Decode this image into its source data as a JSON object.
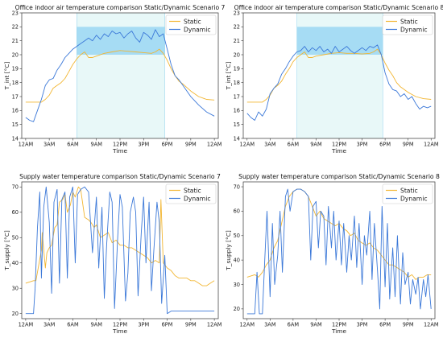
{
  "chart_data": [
    {
      "type": "line",
      "title": "Office indoor air temperature comparison Static/Dynamic Scenario 7",
      "xlabel": "Time",
      "ylabel": "T_int [°C]",
      "xticks": [
        "12AM",
        "3AM",
        "6AM",
        "9AM",
        "12PM",
        "3PM",
        "6PM",
        "9PM",
        "12AM"
      ],
      "xlim": [
        -0.5,
        24.5
      ],
      "ylim": [
        14,
        23
      ],
      "yticks": [
        14,
        15,
        16,
        17,
        18,
        19,
        20,
        21,
        22,
        23
      ],
      "legend": "top-right",
      "shading": {
        "x0": 6.5,
        "x1": 17.7,
        "band_low": 20,
        "band_high": 22,
        "band_color": "#a6dcf4",
        "area_color": "#e8f8f8"
      },
      "series": [
        {
          "name": "Static",
          "color": "#f2b632",
          "x": [
            0,
            1,
            2,
            2.5,
            3,
            3.5,
            4,
            4.5,
            5,
            5.5,
            6,
            6.5,
            7,
            7.5,
            8,
            8.5,
            9,
            10,
            11,
            12,
            13,
            14,
            15,
            16,
            16.5,
            17,
            17.5,
            18,
            18.5,
            19,
            19.5,
            20,
            21,
            22,
            23,
            24
          ],
          "y": [
            16.6,
            16.6,
            16.6,
            16.8,
            17.1,
            17.6,
            17.8,
            18,
            18.3,
            18.8,
            19.3,
            19.7,
            20,
            20.2,
            19.8,
            19.8,
            19.9,
            20.1,
            20.2,
            20.3,
            20.25,
            20.2,
            20.15,
            20.1,
            20.2,
            20.4,
            20.1,
            19.6,
            19.0,
            18.5,
            18.1,
            17.9,
            17.4,
            17.0,
            16.8,
            16.75
          ]
        },
        {
          "name": "Dynamic",
          "color": "#3b78d8",
          "x": [
            0,
            0.5,
            1,
            1.5,
            2,
            2.5,
            3,
            3.5,
            4,
            4.5,
            5,
            5.5,
            6,
            6.5,
            7,
            7.5,
            8,
            8.5,
            9,
            9.5,
            10,
            10.5,
            11,
            11.5,
            12,
            12.5,
            13,
            13.5,
            14,
            14.5,
            15,
            15.5,
            16,
            16.5,
            17,
            17.5,
            18,
            18.5,
            19,
            19.5,
            20,
            21,
            22,
            23,
            24
          ],
          "y": [
            15.5,
            15.3,
            15.2,
            16.0,
            16.8,
            17.8,
            18.2,
            18.3,
            18.9,
            19.3,
            19.8,
            20.1,
            20.4,
            20.6,
            20.8,
            21.0,
            21.2,
            21.0,
            21.4,
            21.1,
            21.5,
            21.3,
            21.7,
            21.5,
            21.6,
            21.2,
            21.5,
            21.7,
            21.2,
            20.9,
            21.6,
            21.4,
            21.1,
            21.8,
            21.3,
            21.5,
            20.4,
            19.3,
            18.5,
            18.2,
            17.8,
            17.0,
            16.4,
            15.9,
            15.6
          ]
        }
      ]
    },
    {
      "type": "line",
      "title": "Office indoor air temperature comparison Static/Dynamic Scenario 8",
      "xlabel": "Time",
      "ylabel": "T_int [°C]",
      "xticks": [
        "12AM",
        "3AM",
        "6AM",
        "9AM",
        "12PM",
        "3PM",
        "6PM",
        "9PM",
        "12AM"
      ],
      "xlim": [
        -0.5,
        24.5
      ],
      "ylim": [
        14,
        23
      ],
      "yticks": [
        14,
        15,
        16,
        17,
        18,
        19,
        20,
        21,
        22,
        23
      ],
      "legend": "top-right",
      "shading": {
        "x0": 6.5,
        "x1": 17.7,
        "band_low": 20,
        "band_high": 22,
        "band_color": "#a6dcf4",
        "area_color": "#e8f8f8"
      },
      "series": [
        {
          "name": "Static",
          "color": "#f2b632",
          "x": [
            0,
            1,
            2,
            2.5,
            3,
            3.5,
            4,
            4.5,
            5,
            5.5,
            6,
            6.5,
            7,
            7.5,
            8,
            8.5,
            9,
            10,
            11,
            12,
            13,
            14,
            15,
            16,
            16.5,
            17,
            17.5,
            18,
            18.5,
            19,
            19.5,
            20,
            21,
            22,
            23,
            24
          ],
          "y": [
            16.6,
            16.6,
            16.6,
            16.8,
            17.1,
            17.6,
            17.8,
            18.1,
            18.6,
            19.0,
            19.5,
            19.8,
            20.0,
            20.2,
            19.8,
            19.8,
            19.9,
            20.0,
            20.1,
            20.15,
            20.1,
            20.1,
            20.05,
            20.1,
            20.2,
            20.4,
            20.0,
            19.4,
            18.9,
            18.5,
            18.0,
            17.7,
            17.3,
            17.0,
            16.85,
            16.8
          ]
        },
        {
          "name": "Dynamic",
          "color": "#3b78d8",
          "x": [
            0,
            0.5,
            1,
            1.5,
            2,
            2.5,
            3,
            3.5,
            4,
            4.5,
            5,
            5.5,
            6,
            6.5,
            7,
            7.5,
            8,
            8.5,
            9,
            9.5,
            10,
            10.5,
            11,
            11.5,
            12,
            12.5,
            13,
            13.5,
            14,
            14.5,
            15,
            15.5,
            16,
            16.5,
            17,
            17.5,
            18,
            18.5,
            19,
            19.5,
            20,
            20.5,
            21,
            21.5,
            22,
            22.5,
            23,
            23.5,
            24
          ],
          "y": [
            15.8,
            15.5,
            15.3,
            15.9,
            15.6,
            16.1,
            17.2,
            17.6,
            17.9,
            18.6,
            19.0,
            19.5,
            19.9,
            20.2,
            20.3,
            20.6,
            20.2,
            20.5,
            20.3,
            20.6,
            20.2,
            20.4,
            20.1,
            20.6,
            20.2,
            20.4,
            20.6,
            20.3,
            20.1,
            20.3,
            20.5,
            20.3,
            20.6,
            20.5,
            20.7,
            20.0,
            18.7,
            17.9,
            17.5,
            17.4,
            17.0,
            17.2,
            16.8,
            17.0,
            16.5,
            16.1,
            16.3,
            16.2,
            16.3
          ]
        }
      ]
    },
    {
      "type": "line",
      "title": "Supply water temperature comparison Static/Dynamic Scenario 7",
      "xlabel": "Time",
      "ylabel": "T_supply [°C]",
      "xticks": [
        "12AM",
        "3AM",
        "6AM",
        "9AM",
        "12PM",
        "3PM",
        "6PM",
        "9PM",
        "12AM"
      ],
      "xlim": [
        -0.5,
        24.5
      ],
      "ylim": [
        18,
        72
      ],
      "yticks": [
        20,
        30,
        40,
        50,
        60,
        70
      ],
      "legend": "top-right",
      "series": [
        {
          "name": "Static",
          "color": "#f2b632",
          "x": [
            0,
            1,
            1.3,
            2,
            2.1,
            2.5,
            2.7,
            3,
            3.3,
            3.7,
            4,
            4.3,
            4.7,
            5,
            5.3,
            5.7,
            6,
            6.3,
            6.7,
            7,
            7.5,
            8,
            8.3,
            8.7,
            9,
            9.5,
            10,
            10.5,
            11,
            11.5,
            12,
            12.5,
            13,
            13.5,
            14,
            14.5,
            15,
            15.5,
            16,
            16.5,
            17,
            17.2,
            17.5,
            18,
            18.5,
            19,
            19.5,
            20,
            20.5,
            21,
            21.5,
            22,
            22.5,
            23,
            23.5,
            24
          ],
          "y": [
            32,
            33,
            33,
            45,
            52,
            38,
            44,
            46,
            47,
            54,
            55,
            64,
            65,
            67,
            60,
            63,
            68,
            66,
            70,
            69,
            58,
            57,
            56,
            54,
            55,
            50,
            51,
            52,
            48,
            49,
            47,
            47,
            46,
            46,
            45,
            44,
            43,
            42,
            40,
            41,
            40,
            65,
            40,
            38,
            37,
            35,
            34,
            34,
            34,
            33,
            33,
            32,
            31,
            31,
            32,
            33
          ]
        },
        {
          "name": "Dynamic",
          "color": "#3b78d8",
          "x": [
            0,
            1,
            1.2,
            1.5,
            1.8,
            2,
            2.3,
            2.6,
            3,
            3.3,
            3.6,
            4,
            4.3,
            4.6,
            5,
            5.3,
            5.6,
            6,
            6.3,
            6.6,
            7,
            7.5,
            8,
            8.5,
            9,
            9.3,
            9.7,
            10,
            10.3,
            10.7,
            11,
            11.3,
            11.7,
            12,
            12.3,
            12.7,
            13,
            13.3,
            13.7,
            14,
            14.3,
            14.7,
            15,
            15.3,
            15.7,
            16,
            16.3,
            16.7,
            17,
            17.3,
            17.7,
            18,
            18.5,
            19,
            20,
            21,
            22,
            23,
            24
          ],
          "y": [
            20,
            20,
            30,
            54,
            68,
            34,
            62,
            70,
            56,
            28,
            64,
            69,
            32,
            65,
            68,
            34,
            66,
            70,
            40,
            67,
            69,
            70,
            68,
            44,
            66,
            38,
            62,
            26,
            47,
            68,
            64,
            22,
            50,
            67,
            62,
            25,
            36,
            60,
            66,
            60,
            27,
            52,
            66,
            40,
            64,
            29,
            45,
            64,
            56,
            24,
            43,
            20,
            21,
            21,
            21,
            21,
            21,
            21,
            21
          ]
        }
      ]
    },
    {
      "type": "line",
      "title": "Supply water temperature comparison Static/Dynamic Scenario 8",
      "xlabel": "Time",
      "ylabel": "T_supply [°C]",
      "xticks": [
        "12AM",
        "3AM",
        "6AM",
        "9AM",
        "12PM",
        "3PM",
        "6PM",
        "9PM",
        "12AM"
      ],
      "xlim": [
        -0.5,
        24.5
      ],
      "ylim": [
        16,
        72
      ],
      "yticks": [
        20,
        30,
        40,
        50,
        60,
        70
      ],
      "legend": "top-right",
      "series": [
        {
          "name": "Static",
          "color": "#f2b632",
          "x": [
            0,
            1,
            1.5,
            2,
            2.5,
            3,
            3.5,
            4,
            4.5,
            5,
            5.5,
            6,
            6.5,
            7,
            7.5,
            8,
            8.5,
            9,
            9.5,
            10,
            10.5,
            11,
            11.5,
            12,
            12.5,
            13,
            13.5,
            14,
            14.5,
            15,
            15.5,
            16,
            16.5,
            17,
            17.5,
            18,
            18.5,
            19,
            19.5,
            20,
            20.5,
            21,
            21.5,
            22,
            22.5,
            23,
            23.5,
            24
          ],
          "y": [
            33,
            34,
            33,
            35,
            38,
            40,
            45,
            48,
            55,
            62,
            66,
            68,
            69,
            69,
            68,
            66,
            62,
            58,
            60,
            57,
            56,
            55,
            54,
            55,
            53,
            52,
            50,
            51,
            48,
            47,
            46,
            47,
            45,
            44,
            42,
            40,
            38,
            38,
            37,
            36,
            35,
            33,
            34,
            32,
            33,
            33,
            34,
            34
          ]
        },
        {
          "name": "Dynamic",
          "color": "#3b78d8",
          "x": [
            0,
            1,
            1.3,
            1.6,
            2,
            2.3,
            2.6,
            3,
            3.3,
            3.6,
            4,
            4.3,
            4.6,
            5,
            5.3,
            5.6,
            6,
            6.5,
            7,
            7.5,
            8,
            8.3,
            8.6,
            9,
            9.3,
            9.6,
            10,
            10.3,
            10.6,
            11,
            11.3,
            11.6,
            12,
            12.3,
            12.6,
            13,
            13.3,
            13.6,
            14,
            14.3,
            14.6,
            15,
            15.3,
            15.6,
            16,
            16.3,
            16.6,
            17,
            17.3,
            17.6,
            18,
            18.3,
            18.6,
            19,
            19.3,
            19.6,
            20,
            20.3,
            20.6,
            21,
            21.3,
            21.6,
            22,
            22.3,
            22.6,
            23,
            23.3,
            23.6,
            24
          ],
          "y": [
            18,
            18,
            35,
            18,
            18,
            40,
            60,
            25,
            55,
            30,
            42,
            60,
            35,
            66,
            69,
            60,
            68,
            69,
            69,
            68,
            66,
            40,
            62,
            64,
            45,
            60,
            58,
            38,
            62,
            45,
            60,
            40,
            56,
            38,
            55,
            35,
            50,
            40,
            58,
            37,
            55,
            30,
            50,
            42,
            60,
            32,
            55,
            36,
            20,
            62,
            29,
            55,
            24,
            45,
            25,
            50,
            22,
            43,
            30,
            35,
            22,
            32,
            26,
            33,
            20,
            32,
            25,
            34,
            20
          ]
        }
      ]
    }
  ]
}
